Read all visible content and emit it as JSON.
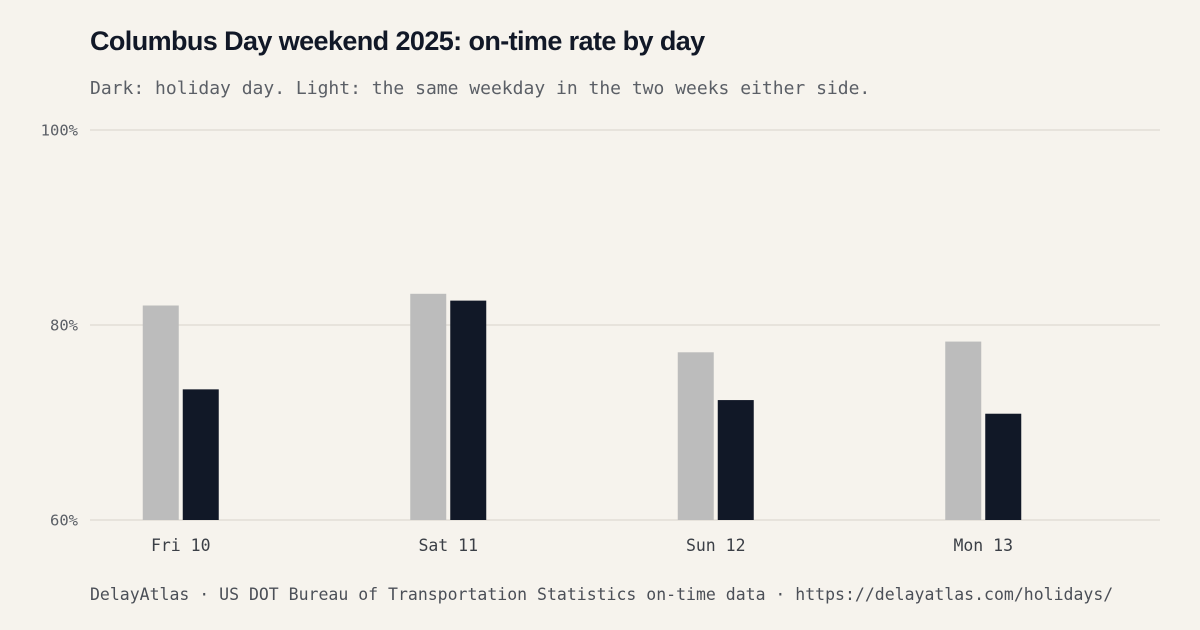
{
  "title": "Columbus Day weekend 2025: on-time rate by day",
  "subtitle": "Dark: holiday day. Light: the same weekday in the two weeks either side.",
  "footer": "DelayAtlas · US DOT Bureau of Transportation Statistics on-time data · https://delayatlas.com/holidays/",
  "colors": {
    "baseline": "#bcbcbc",
    "holiday": "#111827",
    "background": "#f6f3ed",
    "grid": "#e2ded6"
  },
  "chart_data": {
    "type": "bar",
    "title": "Columbus Day weekend 2025: on-time rate by day",
    "subtitle": "Dark: holiday day. Light: the same weekday in the two weeks either side.",
    "xlabel": "",
    "ylabel": "",
    "ylim": [
      60,
      100
    ],
    "yticks": [
      60,
      80,
      100
    ],
    "ytick_labels": [
      "60%",
      "80%",
      "100%"
    ],
    "grid": true,
    "legend": "none",
    "categories": [
      "Fri 10",
      "Sat 11",
      "Sun 12",
      "Mon 13"
    ],
    "series": [
      {
        "role": "baseline",
        "values": [
          82.0,
          83.2,
          77.2,
          78.3
        ]
      },
      {
        "role": "holiday",
        "values": [
          73.4,
          82.5,
          72.3,
          70.9
        ]
      }
    ]
  }
}
